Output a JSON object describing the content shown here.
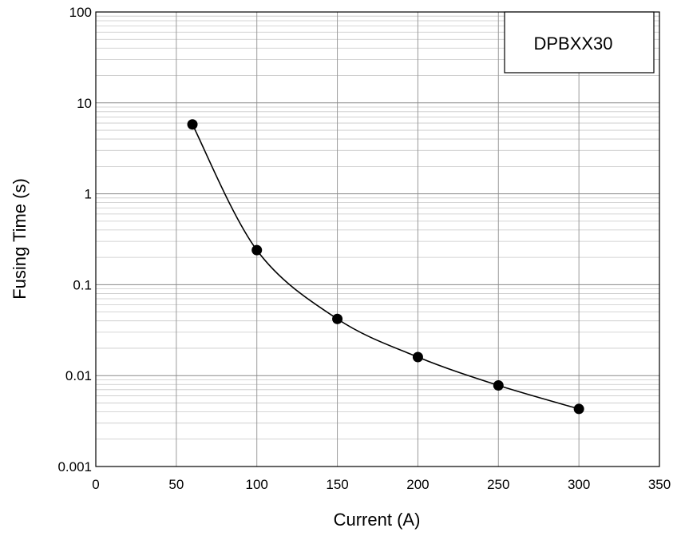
{
  "chart_data": {
    "type": "scatter",
    "legend": "DPBXX30",
    "legend_position": "top-right",
    "xlabel": "Current (A)",
    "ylabel": "Fusing Time (s)",
    "xlim": [
      0,
      350
    ],
    "ylim": [
      0.001,
      100
    ],
    "yscale": "log",
    "grid": true,
    "smooth_line": true,
    "x_ticks": [
      "0",
      "50",
      "100",
      "150",
      "200",
      "250",
      "300",
      "350"
    ],
    "y_ticks": [
      "0.001",
      "0.01",
      "0.1",
      "1",
      "10",
      "100"
    ],
    "series": [
      {
        "x": [
          60,
          100,
          150,
          200,
          250,
          300
        ],
        "y": [
          5.8,
          0.24,
          0.042,
          0.016,
          0.0078,
          0.0043
        ]
      }
    ]
  }
}
